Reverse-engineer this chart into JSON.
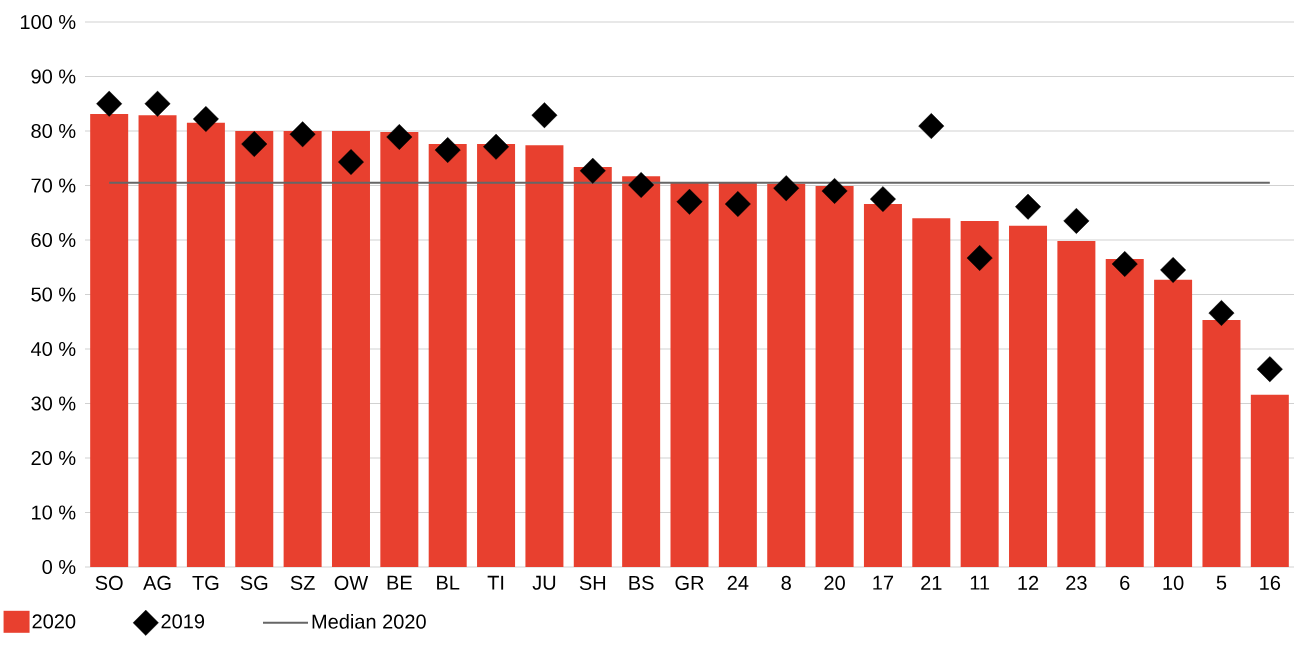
{
  "chart_data": {
    "type": "bar",
    "categories": [
      "SO",
      "AG",
      "TG",
      "SG",
      "SZ",
      "OW",
      "BE",
      "BL",
      "TI",
      "JU",
      "SH",
      "BS",
      "GR",
      "24",
      "8",
      "20",
      "17",
      "21",
      "11",
      "12",
      "23",
      "6",
      "10",
      "5",
      "16"
    ],
    "series": [
      {
        "name": "2020",
        "color": "#e8402f",
        "values": [
          83.1,
          82.9,
          81.5,
          80.0,
          80.0,
          80.0,
          79.8,
          77.6,
          77.6,
          77.4,
          73.4,
          71.7,
          70.5,
          70.5,
          70.3,
          69.9,
          66.6,
          64.0,
          63.5,
          62.6,
          59.8,
          56.5,
          52.7,
          45.3,
          31.6
        ]
      },
      {
        "name": "2019",
        "type": "scatter",
        "marker": "diamond",
        "color": "#000000",
        "values": [
          85.0,
          85.0,
          82.2,
          77.6,
          79.4,
          74.3,
          78.9,
          76.5,
          77.1,
          82.9,
          72.7,
          70.1,
          67.0,
          66.6,
          69.5,
          69.0,
          67.5,
          80.9,
          56.7,
          66.1,
          63.5,
          55.6,
          54.5,
          46.6,
          36.3
        ]
      }
    ],
    "ref_lines": [
      {
        "axis": "y",
        "value": 70.5,
        "label": "Median 2020",
        "color": "#666666"
      }
    ],
    "ylim": [
      0,
      100
    ],
    "yticks": [
      {
        "value": 0,
        "label": "0 %"
      },
      {
        "value": 10,
        "label": "10 %"
      },
      {
        "value": 20,
        "label": "20 %"
      },
      {
        "value": 30,
        "label": "30 %"
      },
      {
        "value": 40,
        "label": "40 %"
      },
      {
        "value": 50,
        "label": "50 %"
      },
      {
        "value": 60,
        "label": "60 %"
      },
      {
        "value": 70,
        "label": "70 %"
      },
      {
        "value": 80,
        "label": "80 %"
      },
      {
        "value": 90,
        "label": "90 %"
      },
      {
        "value": 100,
        "label": "100 %"
      }
    ],
    "grid": "y",
    "legend": "bottom left"
  }
}
